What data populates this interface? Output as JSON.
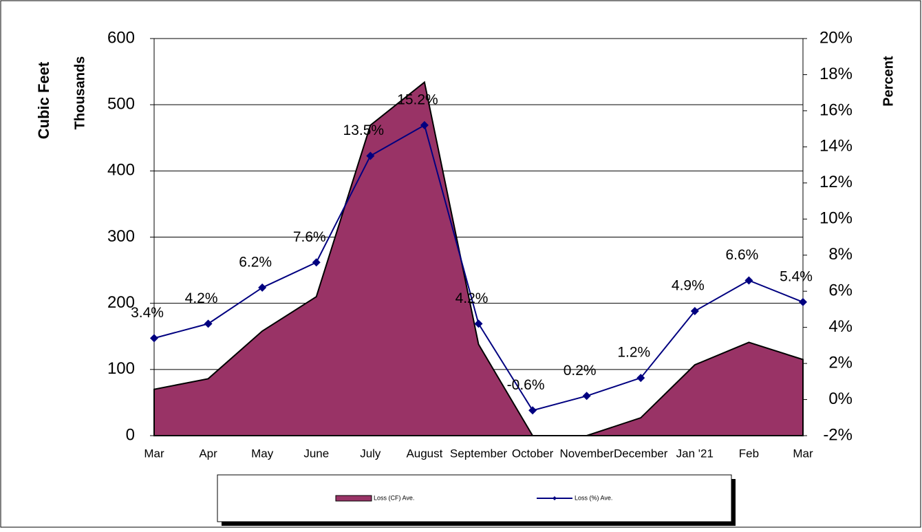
{
  "chart_data": {
    "type": "combo",
    "y_label": "Cubic Feet",
    "y_sublabel": "Thousands",
    "y2_label": "Percent",
    "categories": [
      "Mar",
      "Apr",
      "May",
      "June",
      "July",
      "August",
      "September",
      "October",
      "November",
      "December",
      "Jan '21",
      "Feb",
      "Mar"
    ],
    "series": [
      {
        "name": "Loss (CF) Ave.",
        "type": "area",
        "color": "#993366",
        "values": [
          70,
          86,
          158,
          210,
          469,
          534,
          138,
          0,
          0,
          27,
          107,
          141,
          115
        ]
      },
      {
        "name": "Loss (%) Ave.",
        "type": "line",
        "axis": "y2",
        "color": "#000080",
        "values": [
          3.4,
          4.2,
          6.2,
          7.6,
          13.5,
          15.2,
          4.2,
          -0.6,
          0.2,
          1.2,
          4.9,
          6.6,
          5.4
        ],
        "value_labels": [
          "3.4%",
          "4.2%",
          "6.2%",
          "7.6%",
          "13.5%",
          "15.2%",
          "4.2%",
          "-0.6%",
          "0.2%",
          "1.2%",
          "4.9%",
          "6.6%",
          "5.4%"
        ]
      }
    ],
    "ylim": [
      0,
      600
    ],
    "yticks": [
      0,
      100,
      200,
      300,
      400,
      500,
      600
    ],
    "y2lim": [
      -2,
      20
    ],
    "y2ticks": [
      {
        "value": -2,
        "label": "-2%"
      },
      {
        "value": 0,
        "label": "0%"
      },
      {
        "value": 2,
        "label": "2%"
      },
      {
        "value": 4,
        "label": "4%"
      },
      {
        "value": 6,
        "label": "6%"
      },
      {
        "value": 8,
        "label": "8%"
      },
      {
        "value": 10,
        "label": "10%"
      },
      {
        "value": 12,
        "label": "12%"
      },
      {
        "value": 14,
        "label": "14%"
      },
      {
        "value": 16,
        "label": "16%"
      },
      {
        "value": 18,
        "label": "18%"
      },
      {
        "value": 20,
        "label": "20%"
      }
    ],
    "grid": true
  }
}
